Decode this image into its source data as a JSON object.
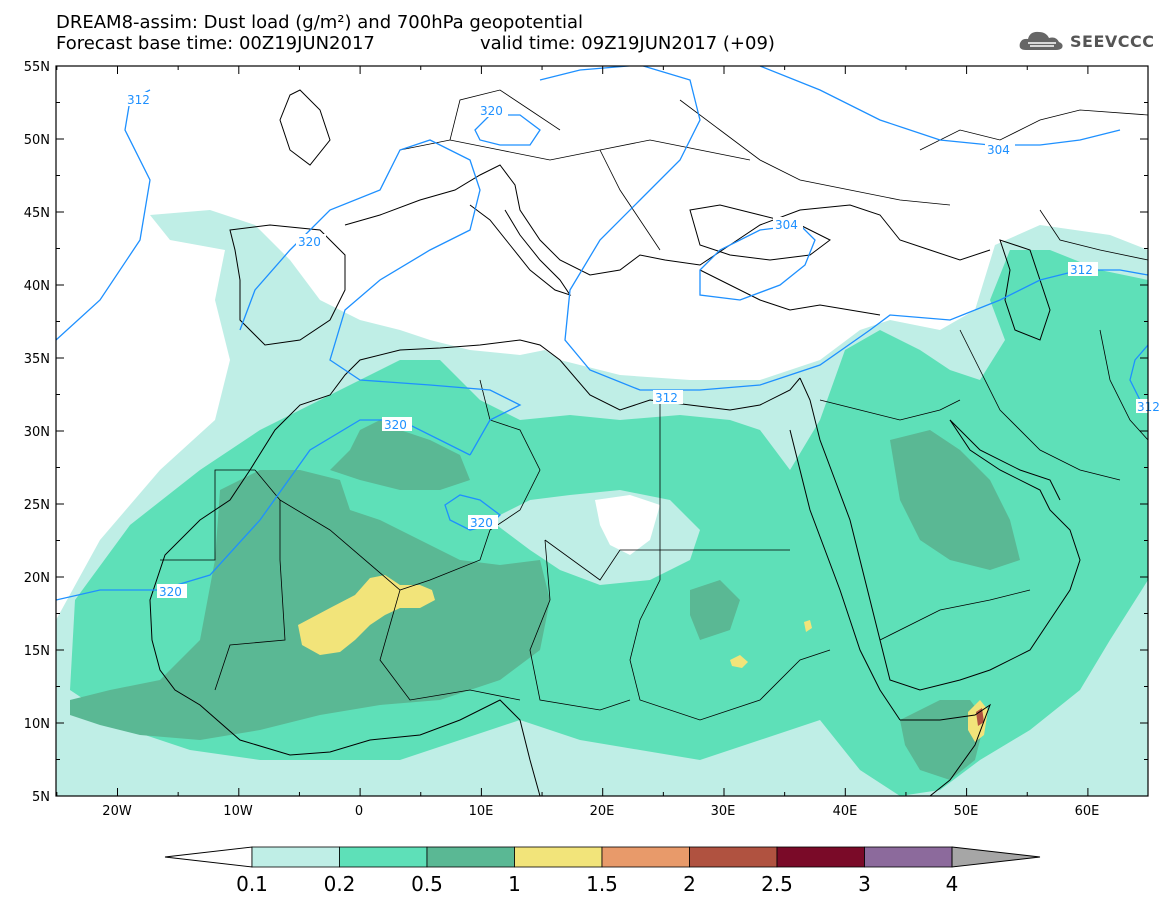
{
  "header": {
    "title_line1": "DREAM8-assim: Dust load (g/m²) and 700hPa geopotential",
    "title_line2": "Forecast base time: 00Z19JUN2017",
    "valid_time": "valid time: 09Z19JUN2017 (+09)",
    "logo_text": "SEEVCCC"
  },
  "map": {
    "lat_labels": [
      "55N",
      "50N",
      "45N",
      "40N",
      "35N",
      "30N",
      "25N",
      "20N",
      "15N",
      "10N",
      "5N"
    ],
    "lon_labels": [
      "20W",
      "10W",
      "0",
      "10E",
      "20E",
      "30E",
      "40E",
      "50E",
      "60E"
    ],
    "contour_labels": [
      "312",
      "320",
      "320",
      "320",
      "320",
      "320",
      "304",
      "304",
      "312",
      "312",
      "312"
    ]
  },
  "legend": {
    "levels": [
      "0.1",
      "0.2",
      "0.5",
      "1",
      "1.5",
      "2",
      "2.5",
      "3",
      "4"
    ],
    "colors": [
      "#ffffff",
      "#bfeee6",
      "#5ee0b8",
      "#5ab894",
      "#f2e47a",
      "#e89a6a",
      "#b05240",
      "#7a0a28",
      "#8c6a9c",
      "#a6a6a6"
    ]
  },
  "colors": {
    "contour": "#1e90ff",
    "dust_light": "#bfeee6",
    "dust_mid": "#5ee0b8",
    "dust_dark": "#5ab894",
    "dust_yellow": "#f2e47a"
  }
}
